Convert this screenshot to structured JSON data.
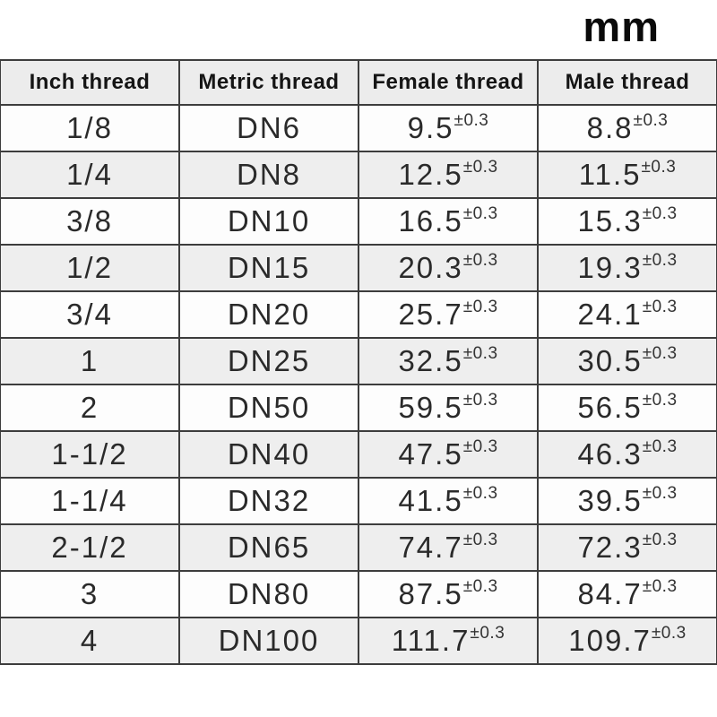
{
  "unit_label": "mm",
  "table": {
    "tolerance": "±0.3",
    "headers": [
      "Inch thread",
      "Metric thread",
      "Female thread",
      "Male thread"
    ],
    "rows": [
      {
        "inch": "1/8",
        "metric": "DN6",
        "female": "9.5",
        "male": "8.8"
      },
      {
        "inch": "1/4",
        "metric": "DN8",
        "female": "12.5",
        "male": "11.5"
      },
      {
        "inch": "3/8",
        "metric": "DN10",
        "female": "16.5",
        "male": "15.3"
      },
      {
        "inch": "1/2",
        "metric": "DN15",
        "female": "20.3",
        "male": "19.3"
      },
      {
        "inch": "3/4",
        "metric": "DN20",
        "female": "25.7",
        "male": "24.1"
      },
      {
        "inch": "1",
        "metric": "DN25",
        "female": "32.5",
        "male": "30.5"
      },
      {
        "inch": "2",
        "metric": "DN50",
        "female": "59.5",
        "male": "56.5"
      },
      {
        "inch": "1-1/2",
        "metric": "DN40",
        "female": "47.5",
        "male": "46.3"
      },
      {
        "inch": "1-1/4",
        "metric": "DN32",
        "female": "41.5",
        "male": "39.5"
      },
      {
        "inch": "2-1/2",
        "metric": "DN65",
        "female": "74.7",
        "male": "72.3"
      },
      {
        "inch": "3",
        "metric": "DN80",
        "female": "87.5",
        "male": "84.7"
      },
      {
        "inch": "4",
        "metric": "DN100",
        "female": "111.7",
        "male": "109.7"
      }
    ]
  }
}
